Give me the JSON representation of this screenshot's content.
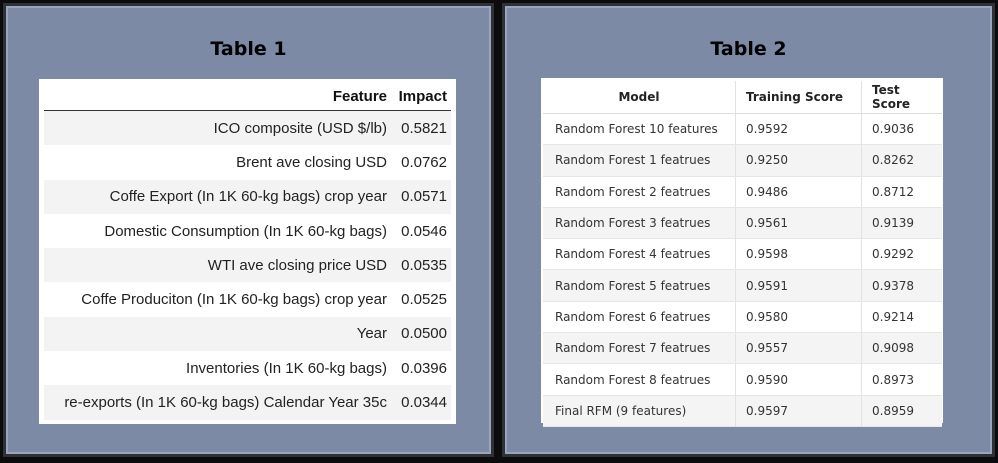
{
  "table1": {
    "title": "Table 1",
    "headers": [
      "Feature",
      "Impact"
    ],
    "rows": [
      {
        "feature": "ICO composite (USD $/lb)",
        "impact": "0.5821"
      },
      {
        "feature": "Brent ave closing USD",
        "impact": "0.0762"
      },
      {
        "feature": "Coffe Export (In 1K 60-kg bags) crop year",
        "impact": "0.0571"
      },
      {
        "feature": "Domestic Consumption (In 1K 60-kg bags)",
        "impact": "0.0546"
      },
      {
        "feature": "WTI ave closing price USD",
        "impact": "0.0535"
      },
      {
        "feature": "Coffe Produciton (In 1K 60-kg bags) crop year",
        "impact": "0.0525"
      },
      {
        "feature": "Year",
        "impact": "0.0500"
      },
      {
        "feature": "Inventories (In 1K 60-kg bags)",
        "impact": "0.0396"
      },
      {
        "feature": "re-exports (In 1K 60-kg bags) Calendar Year 35c",
        "impact": "0.0344"
      }
    ]
  },
  "table2": {
    "title": "Table 2",
    "headers": [
      "Model",
      "Training Score",
      "Test Score"
    ],
    "rows": [
      {
        "model": "Random Forest 10 features",
        "training": "0.9592",
        "test": "0.9036"
      },
      {
        "model": "Random Forest 1 featrues",
        "training": "0.9250",
        "test": "0.8262"
      },
      {
        "model": "Random Forest 2 featrues",
        "training": "0.9486",
        "test": "0.8712"
      },
      {
        "model": "Random Forest 3 featrues",
        "training": "0.9561",
        "test": "0.9139"
      },
      {
        "model": "Random Forest 4 featrues",
        "training": "0.9598",
        "test": "0.9292"
      },
      {
        "model": "Random Forest 5 featrues",
        "training": "0.9591",
        "test": "0.9378"
      },
      {
        "model": "Random Forest 6 featrues",
        "training": "0.9580",
        "test": "0.9214"
      },
      {
        "model": "Random Forest 7 featrues",
        "training": "0.9557",
        "test": "0.9098"
      },
      {
        "model": "Random Forest 8 featrues",
        "training": "0.9590",
        "test": "0.8973"
      },
      {
        "model": "Final RFM (9 features)",
        "training": "0.9597",
        "test": "0.8959"
      }
    ]
  },
  "colors": {
    "panel_bg": "#7d8aa6",
    "table_bg": "#ffffff",
    "stripe": "#f3f3f3"
  }
}
